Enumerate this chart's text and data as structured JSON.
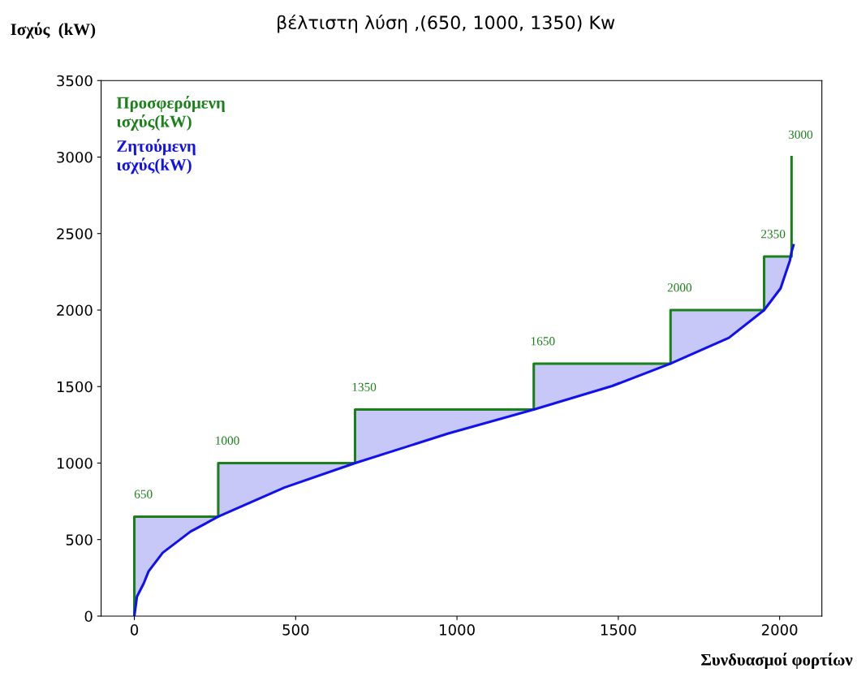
{
  "chart_data": {
    "type": "line",
    "title": "βέλτιστη λύση ,(650, 1000, 1350) Kw",
    "xlabel": "Συνδυασμοί φορτίων",
    "ylabel": "Ισχύς  (kW)",
    "xlim": [
      -103,
      2131
    ],
    "ylim": [
      0,
      3500
    ],
    "xticks": [
      0,
      500,
      1000,
      1500,
      2000
    ],
    "yticks": [
      0,
      500,
      1000,
      1500,
      2000,
      2500,
      3000,
      3500
    ],
    "grid": false,
    "legend": "top left",
    "series": [
      {
        "name": "Προσφερόμενη\nισχύς(kW)",
        "color": "#1a801a",
        "x": [
          0,
          0,
          260,
          260,
          684,
          684,
          1238,
          1238,
          1662,
          1662,
          1952,
          1952,
          2037,
          2037
        ],
        "values": [
          0,
          650,
          650,
          1000,
          1000,
          1350,
          1350,
          1650,
          1650,
          2000,
          2000,
          2350,
          2350,
          3000
        ]
      },
      {
        "name": "Ζητούμενη\nισχύς(kW)",
        "color": "#1010f0",
        "x": [
          0,
          8,
          29,
          44,
          88,
          174,
          260,
          260,
          465,
          684,
          684,
          973,
          1238,
          1238,
          1481,
          1662,
          1662,
          1843,
          1952,
          1952,
          2003,
          2032,
          2037,
          2043
        ],
        "values": [
          0,
          127,
          213,
          292,
          414,
          552,
          650,
          650,
          840,
          1000,
          1000,
          1193,
          1350,
          1350,
          1504,
          1650,
          1650,
          1819,
          2000,
          2000,
          2142,
          2324,
          2380,
          2424
        ],
        "lower": [
          0,
          127,
          213,
          292,
          414,
          552,
          650,
          650,
          840,
          1000,
          1000,
          1193,
          1350,
          1350,
          1504,
          1650,
          1650,
          1819,
          2000,
          2000,
          2142,
          2324,
          2380,
          2424
        ],
        "upper": [
          650,
          650,
          650,
          650,
          650,
          650,
          650,
          1000,
          1000,
          1000,
          1350,
          1350,
          1350,
          1650,
          1650,
          1650,
          2000,
          2000,
          2000,
          2350,
          2350,
          2350,
          2380,
          2424
        ]
      }
    ],
    "annotations": [
      {
        "text": "650",
        "x": 0,
        "y": 650
      },
      {
        "text": "1000",
        "x": 260,
        "y": 1000
      },
      {
        "text": "1350",
        "x": 684,
        "y": 1350
      },
      {
        "text": "1650",
        "x": 1238,
        "y": 1650
      },
      {
        "text": "2000",
        "x": 1662,
        "y": 2000
      },
      {
        "text": "2350",
        "x": 1952,
        "y": 2350
      },
      {
        "text": "3000",
        "x": 2037,
        "y": 3000
      }
    ]
  }
}
